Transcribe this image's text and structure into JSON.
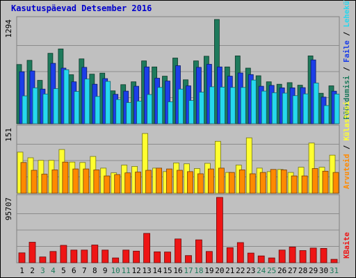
{
  "chart_data": {
    "type": "bar",
    "title": "Kasutuspäevad Detsember 2016",
    "categories": [
      "1",
      "2",
      "3",
      "4",
      "5",
      "6",
      "7",
      "8",
      "9",
      "10",
      "11",
      "12",
      "13",
      "14",
      "15",
      "16",
      "17",
      "18",
      "19",
      "20",
      "21",
      "22",
      "23",
      "24",
      "25",
      "26",
      "27",
      "28",
      "29",
      "30",
      "31"
    ],
    "weekend_days": [
      "3",
      "4",
      "10",
      "11",
      "17",
      "18",
      "24",
      "25",
      "31"
    ],
    "panels": [
      {
        "ymax_label": "1294",
        "ymax": 1294,
        "right_label_parts": [
          "Külastusi",
          "Lehekülgi",
          "Faile",
          "Pöördumisi"
        ],
        "series": [
          {
            "name": "Pöördumisi",
            "color": "#1e7a5c",
            "values": [
              735,
              787,
              538,
              874,
              928,
              608,
              805,
              615,
              628,
              408,
              485,
              520,
              780,
              705,
              590,
              815,
              545,
              780,
              838,
              1294,
              705,
              842,
              690,
              595,
              520,
              490,
              510,
              478,
              842,
              378,
              470
            ]
          },
          {
            "name": "Faile",
            "color": "#1c3ee8",
            "values": [
              645,
              655,
              430,
              750,
              690,
              520,
              700,
              490,
              560,
              365,
              405,
              465,
              705,
              565,
              530,
              720,
              470,
              700,
              738,
              705,
              590,
              630,
              610,
              465,
              475,
              445,
              445,
              448,
              792,
              330,
              404
            ]
          },
          {
            "name": "Lehekülgi",
            "color": "#26d8ee",
            "values": [
              345,
              445,
              368,
              435,
              670,
              400,
              555,
              338,
              525,
              300,
              262,
              280,
              362,
              450,
              272,
              430,
              288,
              392,
              458,
              455,
              450,
              450,
              542,
              405,
              385,
              380,
              348,
              370,
              505,
              225,
              368
            ]
          }
        ]
      },
      {
        "ymax_label": "151",
        "ymax": 151,
        "series": [
          {
            "name": "Külastusi",
            "color": "#ffff30",
            "values": [
              95,
              82,
              76,
              76,
              101,
              72,
              71,
              85,
              58,
              47,
              65,
              62,
              138,
              58,
              50,
              70,
              68,
              57,
              69,
              120,
              48,
              65,
              128,
              58,
              50,
              55,
              48,
              60,
              116,
              60,
              88
            ]
          },
          {
            "name": "Arvuteid",
            "color": "#ff8a00",
            "values": [
              71,
              53,
              44,
              54,
              72,
              56,
              56,
              54,
              40,
              43,
              47,
              49,
              53,
              58,
              56,
              53,
              50,
              45,
              56,
              58,
              48,
              54,
              45,
              48,
              55,
              54,
              40,
              40,
              57,
              51,
              48
            ]
          }
        ]
      },
      {
        "ymax_label": "95707",
        "ymax": 95707,
        "series": [
          {
            "name": "KBaite",
            "color": "#ee1515",
            "values": [
              14500,
              30000,
              8500,
              16500,
              25500,
              18500,
              18500,
              26000,
              18500,
              7000,
              18500,
              17000,
              43000,
              16000,
              15700,
              34800,
              10500,
              33500,
              16500,
              95707,
              22000,
              29500,
              14200,
              10000,
              7000,
              18500,
              23000,
              17800,
              21500,
              21000,
              5000
            ]
          }
        ]
      }
    ]
  }
}
